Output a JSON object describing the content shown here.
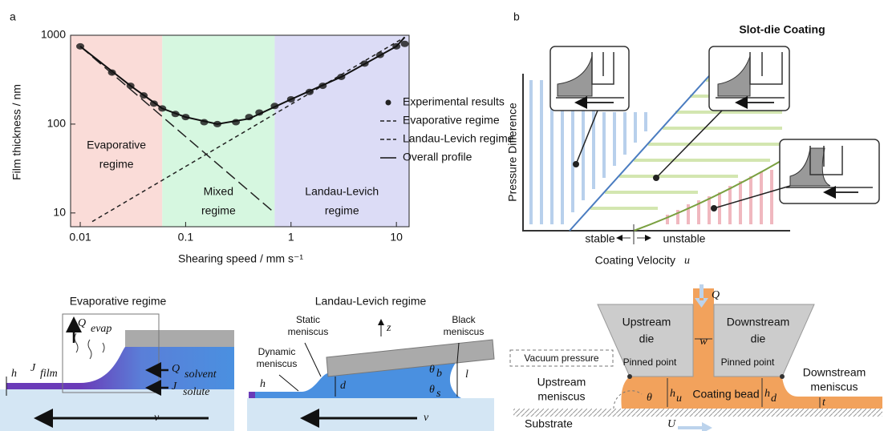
{
  "panel_labels": {
    "a": "a",
    "b": "b"
  },
  "chart_data": {
    "type": "line",
    "x_label": "Shearing speed / mm s⁻¹",
    "y_label": "Film thickness / nm",
    "log_x": true,
    "log_y": true,
    "xlim": [
      0.0081,
      13.2
    ],
    "ylim": [
      7,
      1000
    ],
    "xticks": [
      0.01,
      0.1,
      1,
      10
    ],
    "yticks": [
      10,
      100,
      1000
    ],
    "legend": "right",
    "regions": [
      {
        "label": [
          "Evaporative",
          "regime"
        ],
        "from": 0.0081,
        "to": 0.06,
        "color": "#fadcd8"
      },
      {
        "label": [
          "Mixed",
          "regime"
        ],
        "from": 0.06,
        "to": 0.7,
        "color": "#d6f7e0"
      },
      {
        "label": [
          "Landau-Levich",
          "regime"
        ],
        "from": 0.7,
        "to": 13.2,
        "color": "#dcdcf6"
      }
    ],
    "series": [
      {
        "name": "Experimental results",
        "mark": "points",
        "color": "#222",
        "x": [
          0.01,
          0.02,
          0.03,
          0.04,
          0.05,
          0.06,
          0.08,
          0.1,
          0.15,
          0.2,
          0.3,
          0.4,
          0.5,
          0.7,
          1,
          1.5,
          2,
          3,
          5,
          7,
          10,
          12
        ],
        "values": [
          750,
          380,
          270,
          210,
          170,
          150,
          130,
          120,
          105,
          100,
          105,
          120,
          135,
          160,
          190,
          230,
          270,
          340,
          480,
          600,
          750,
          800
        ]
      },
      {
        "name": "Evaporative regime",
        "mark": "line",
        "dash": "14 6",
        "color": "#222",
        "x": [
          0.01,
          0.7
        ],
        "values": [
          750,
          10
        ]
      },
      {
        "name": "Landau-Levich regime",
        "mark": "line",
        "dash": "5 4",
        "color": "#222",
        "x": [
          0.013,
          12
        ],
        "values": [
          8,
          950
        ]
      },
      {
        "name": "Overall profile",
        "mark": "line",
        "dash": "none",
        "color": "#111",
        "x": [
          0.01,
          0.03,
          0.06,
          0.1,
          0.2,
          0.4,
          1,
          3,
          10,
          12
        ],
        "values": [
          750,
          270,
          150,
          120,
          100,
          115,
          190,
          340,
          750,
          950
        ]
      }
    ]
  },
  "panel_b": {
    "title": "Slot-die Coating",
    "y_label": "Pressure Difference",
    "x_label": "Coating Velocity",
    "x_symbol": "u",
    "stable": "stable",
    "unstable": "unstable"
  },
  "evaporative_diagram": {
    "title": "Evaporative regime",
    "q": "Q",
    "q_sub": "evap",
    "j": "J",
    "j_sub": "film",
    "qs": "Q",
    "qs_sub": "solvent",
    "js": "J",
    "js_sub": "solute",
    "h": "h",
    "v": "v"
  },
  "landau_levich_diagram": {
    "title": "Landau-Levich regime",
    "static": [
      "Static",
      "meniscus"
    ],
    "black": [
      "Black",
      "meniscus"
    ],
    "dynamic": [
      "Dynamic",
      "meniscus"
    ],
    "z": "z",
    "h": "h",
    "d": "d",
    "l": "l",
    "theta": "θ",
    "b": "b",
    "s": "s",
    "v": "v"
  },
  "slot_die_diagram": {
    "q": "Q",
    "upstream_die": [
      "Upstream",
      "die"
    ],
    "downstream_die": [
      "Downstream",
      "die"
    ],
    "w": "w",
    "pinned": "Pinned point",
    "vacuum": "Vacuum pressure",
    "upstream_meniscus": [
      "Upstream",
      "meniscus"
    ],
    "theta": "θ",
    "h": "h",
    "u_sub": "u",
    "d_sub": "d",
    "bead": "Coating bead",
    "downstream_meniscus": [
      "Downstream",
      "meniscus"
    ],
    "t": "t",
    "substrate": "Substrate",
    "U": "U"
  }
}
